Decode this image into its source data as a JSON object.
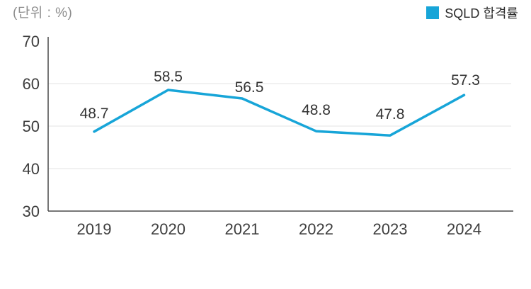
{
  "chart_data": {
    "type": "line",
    "title": "",
    "unit_label": "(단위 : %)",
    "categories": [
      "2019",
      "2020",
      "2021",
      "2022",
      "2023",
      "2024"
    ],
    "series": [
      {
        "name": "SQLD 합격률",
        "values": [
          48.7,
          58.5,
          56.5,
          48.8,
          47.8,
          57.3
        ]
      }
    ],
    "xlabel": "",
    "ylabel": "",
    "ylim": [
      30,
      70
    ],
    "y_ticks": [
      30,
      40,
      50,
      60,
      70
    ],
    "grid": "horizontal",
    "legend_position": "top-right",
    "line_color": "#17a5d8",
    "data_labels": [
      "48.7",
      "58.5",
      "56.5",
      "48.8",
      "47.8",
      "57.3"
    ]
  }
}
